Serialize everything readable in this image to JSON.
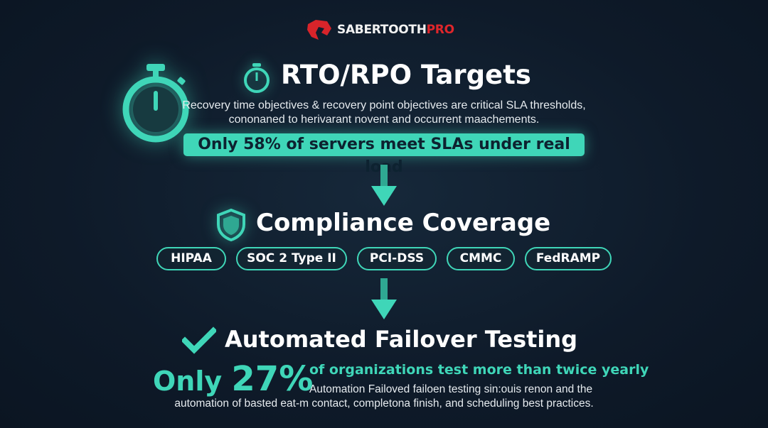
{
  "brand": {
    "name_main": "SABERTOOTH",
    "name_accent": "PRO",
    "accent_color": "#e0262b"
  },
  "colors": {
    "teal": "#3fd6b8",
    "background": "#0e1a29"
  },
  "section1": {
    "icon": "stopwatch-icon",
    "title": "RTO/RPO Targets",
    "description_line1": "Recovery time objectives & recovery point objectives are critical SLA thresholds,",
    "description_line2": "cononaned to herivarant novent and occurrent maachements.",
    "highlight": "Only 58% of servers meet SLAs under real load"
  },
  "section2": {
    "icon": "shield-icon",
    "title": "Compliance Coverage",
    "badges": [
      "HIPAA",
      "SOC 2 Type II",
      "PCI-DSS",
      "CMMC",
      "FedRAMP"
    ]
  },
  "section3": {
    "icon": "checkmark-icon",
    "title": "Automated Failover Testing",
    "stat_prefix": "Only",
    "stat_value": "27%",
    "stat_text": "of organizations test more than twice yearly",
    "description_line1": "Automation Failoved failoen testing sin:ouis renon and the",
    "description_line2": "automation of basted eat-m contact, completona finish, and scheduling best practices."
  }
}
